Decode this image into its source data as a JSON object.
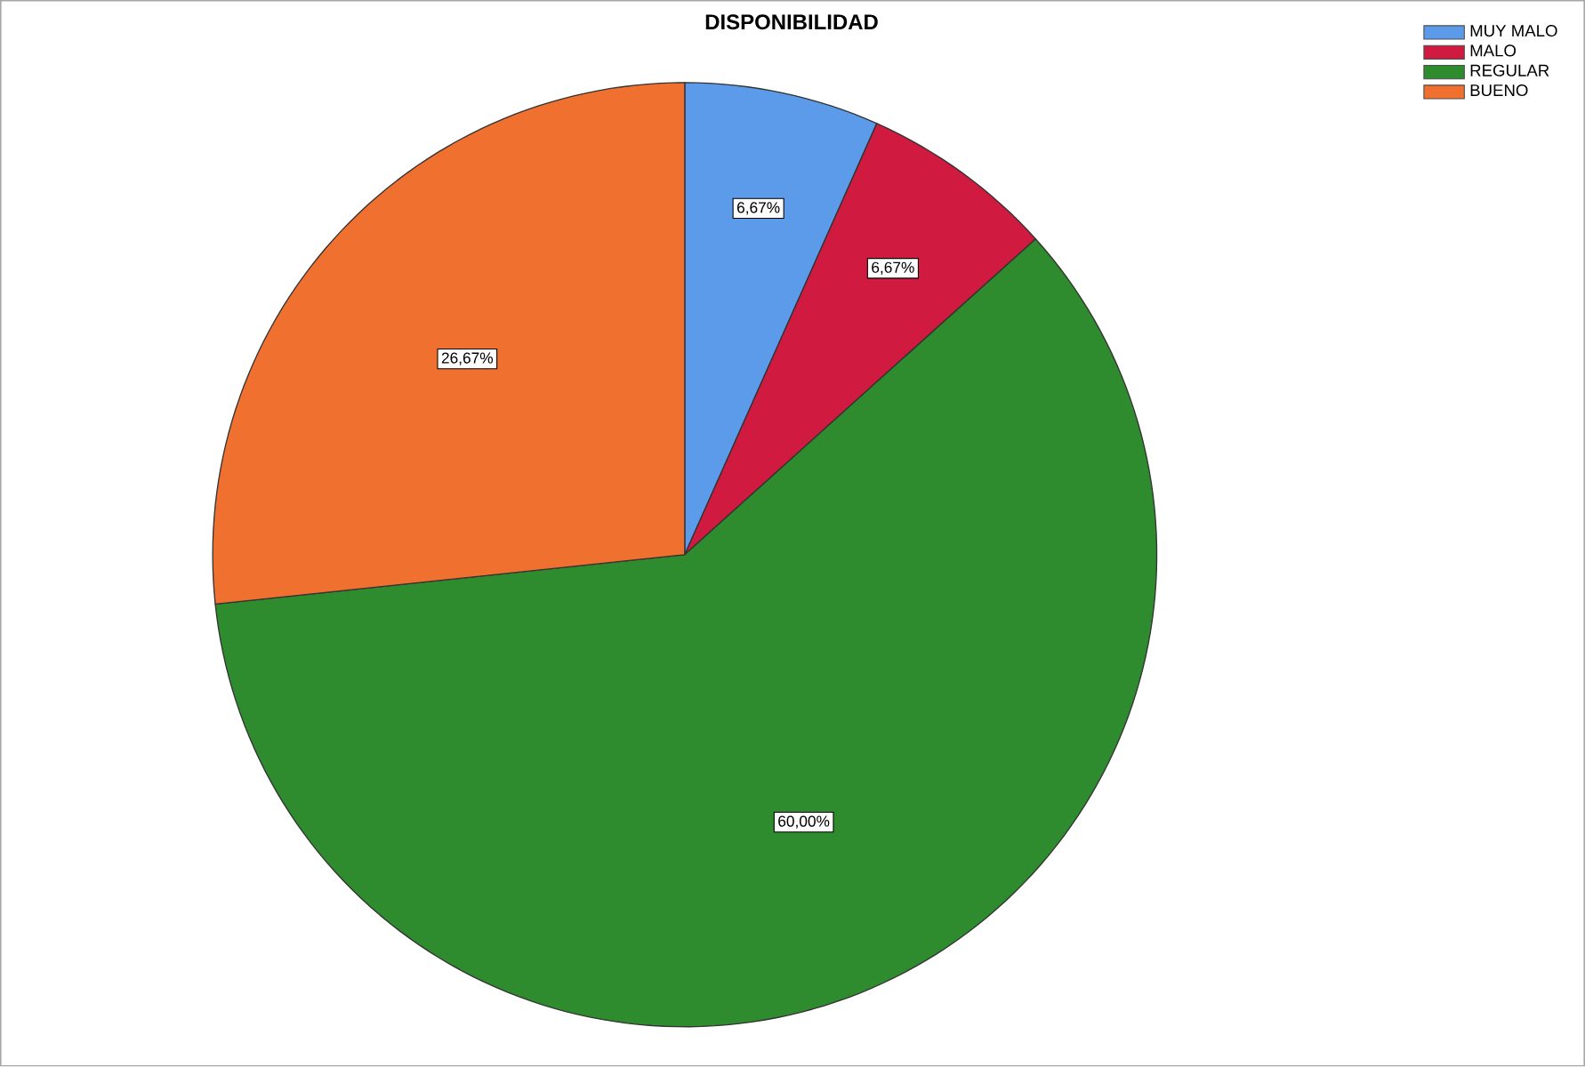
{
  "chart_data": {
    "type": "pie",
    "title": "DISPONIBILIDAD",
    "categories": [
      "MUY MALO",
      "MALO",
      "REGULAR",
      "BUENO"
    ],
    "values": [
      6.67,
      6.67,
      60.0,
      26.67
    ],
    "colors": [
      "#5b9bea",
      "#d01a3f",
      "#2e8b2e",
      "#f07030"
    ],
    "value_labels": [
      "6,67%",
      "6,67%",
      "60,00%",
      "26,67%"
    ],
    "legend": "top right"
  }
}
